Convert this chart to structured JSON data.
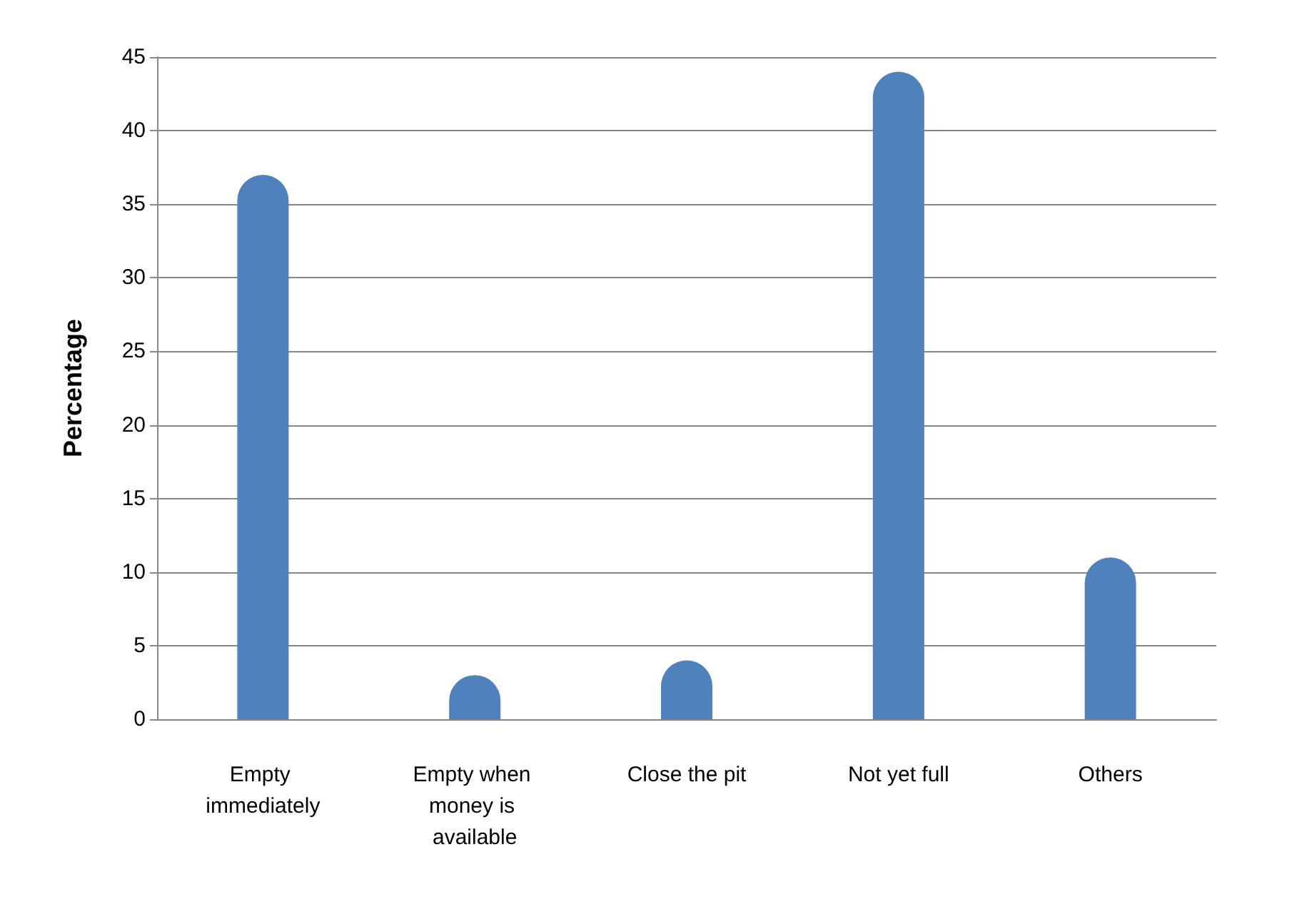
{
  "chart_data": {
    "type": "bar",
    "ylabel": "Percentage",
    "categories": [
      "Empty immediately",
      "Empty when money is available",
      "Close the pit",
      "Not yet full",
      "Others"
    ],
    "values": [
      37,
      3,
      4,
      44,
      11
    ],
    "color": "#4f81bd",
    "ylim": [
      0,
      45
    ],
    "yticks": [
      0,
      5,
      10,
      15,
      20,
      25,
      30,
      35,
      40,
      45
    ],
    "grid": "y"
  }
}
